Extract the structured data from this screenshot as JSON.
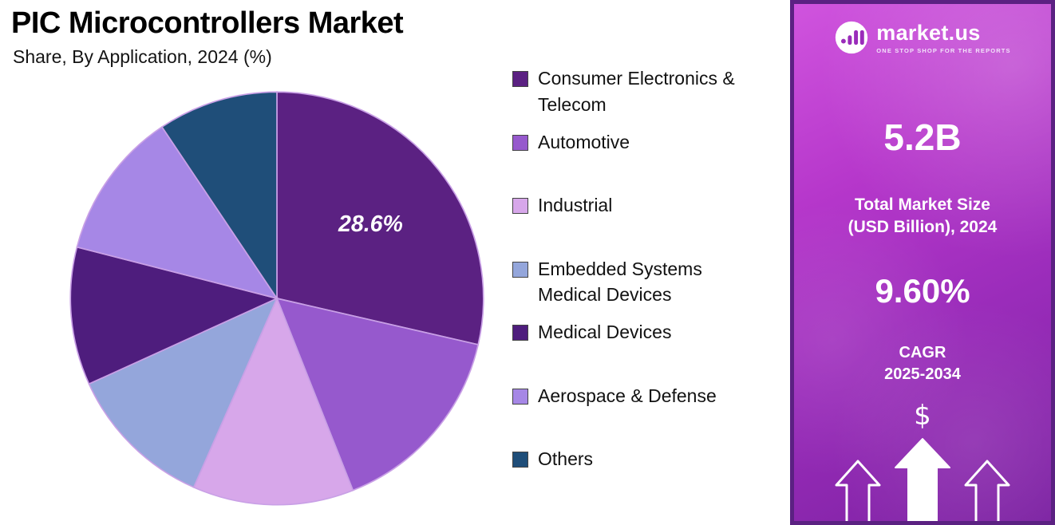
{
  "header": {
    "title": "PIC Microcontrollers Market",
    "subtitle": "Share, By Application, 2024 (%)"
  },
  "chart_data": {
    "type": "pie",
    "title": "PIC Microcontrollers Market",
    "subtitle": "Share, By Application, 2024 (%)",
    "categories": [
      "Consumer Electronics & Telecom",
      "Automotive",
      "Industrial",
      "Embedded Systems Medical Devices",
      "Medical Devices",
      "Aerospace & Defense",
      "Others"
    ],
    "values": [
      28.6,
      15.4,
      12.6,
      11.6,
      10.8,
      11.6,
      9.4
    ],
    "colors": [
      "#5b2182",
      "#9659cd",
      "#d7a7ea",
      "#94a6db",
      "#4e1d7d",
      "#a687e6",
      "#1f4e79"
    ],
    "slice_border_color": "#c9a0e6",
    "start_angle": "top",
    "direction": "clockwise",
    "legend_position": "right",
    "data_labels": [
      {
        "index": 0,
        "text": "28.6%"
      }
    ]
  },
  "legend": {
    "items": [
      {
        "label": "Consumer Electronics &\nTelecom"
      },
      {
        "label": "Automotive"
      },
      {
        "label": "Industrial"
      },
      {
        "label": "Embedded Systems\nMedical Devices"
      },
      {
        "label": "Medical Devices"
      },
      {
        "label": "Aerospace & Defense"
      },
      {
        "label": "Others"
      }
    ]
  },
  "sidebar": {
    "brand": "market.us",
    "tagline": "ONE STOP SHOP FOR THE REPORTS",
    "market_size": {
      "value": "5.2B",
      "label": "Total Market Size\n(USD Billion), 2024"
    },
    "cagr": {
      "value": "9.60%",
      "label": "CAGR\n2025-2034"
    },
    "dollar_symbol": "$"
  }
}
